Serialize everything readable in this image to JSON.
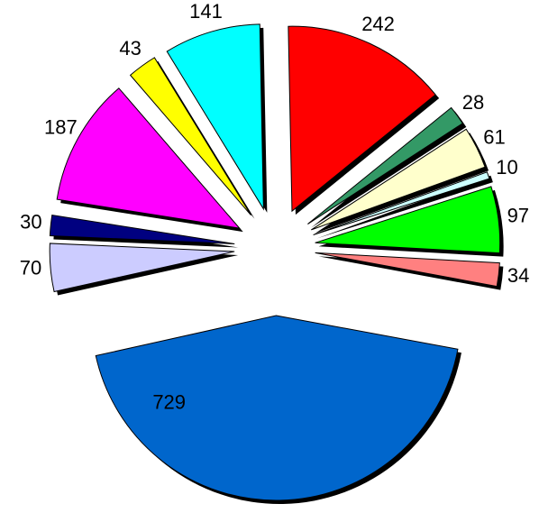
{
  "chart_data": {
    "type": "pie",
    "values": [
      242,
      28,
      61,
      10,
      97,
      34,
      729,
      70,
      30,
      187,
      43,
      141
    ],
    "colors": [
      "#ff0000",
      "#339966",
      "#ffffcc",
      "#ccffff",
      "#00ff00",
      "#ff8080",
      "#0066cc",
      "#ccccff",
      "#000080",
      "#ff00ff",
      "#ffff00",
      "#00ffff"
    ],
    "exploded": true
  }
}
